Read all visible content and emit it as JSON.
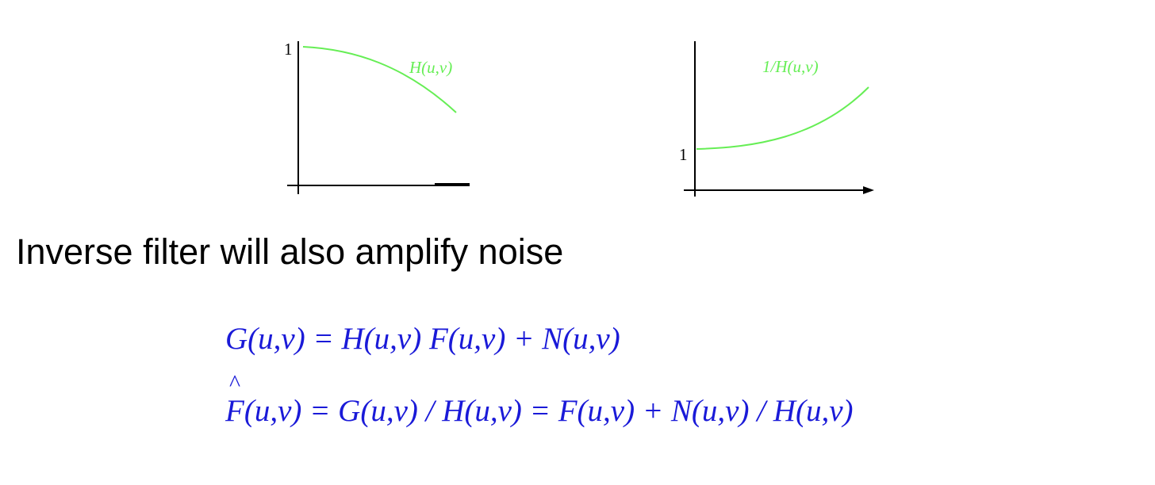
{
  "colors": {
    "curve": "#66ee55",
    "axis": "#000000",
    "equation": "#1a1ad8",
    "heading": "#000000"
  },
  "plots": {
    "left": {
      "y_tick_label": "1",
      "curve_label": "H(u,v)",
      "curve_shape": "decreasing"
    },
    "right": {
      "y_tick_label": "1",
      "curve_label": "1/H(u,v)",
      "curve_shape": "increasing",
      "x_axis_arrow": true
    }
  },
  "heading": "Inverse filter will also amplify noise",
  "equations": {
    "eq1": "G(u,v) = H(u,v) F(u,v) + N(u,v)",
    "eq2_hat_symbol": "^",
    "eq2_lhs_symbol": "F",
    "eq2_rest": "(u,v) = G(u,v) / H(u,v) = F(u,v) + N(u,v) / H(u,v)"
  }
}
